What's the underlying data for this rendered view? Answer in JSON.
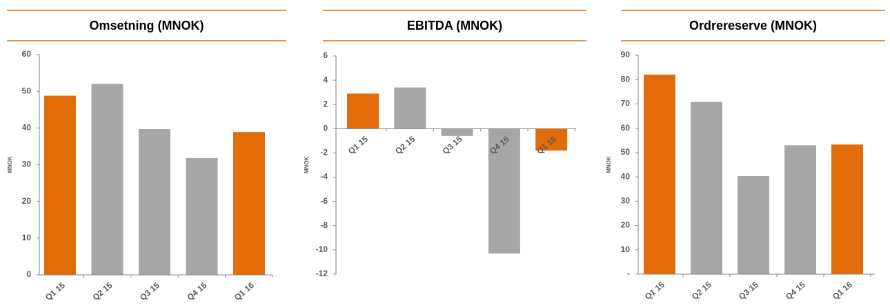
{
  "chart_data": [
    {
      "type": "bar",
      "title": "Omsetning (MNOK)",
      "y_label": "MNOK",
      "categories": [
        "Q1 15",
        "Q2 15",
        "Q3 15",
        "Q4 15",
        "Q1 16"
      ],
      "values": [
        48.8,
        52,
        39.7,
        31.8,
        38.9
      ],
      "colors": [
        "#e36c0a",
        "#a6a6a6",
        "#a6a6a6",
        "#a6a6a6",
        "#e36c0a"
      ],
      "ylim": [
        0,
        60
      ],
      "yticks": [
        0,
        10,
        20,
        30,
        40,
        50,
        60
      ]
    },
    {
      "type": "bar",
      "title": "EBITDA (MNOK)",
      "y_label": "MNOK",
      "categories": [
        "Q1 15",
        "Q2 15",
        "Q3 15",
        "Q4 15",
        "Q1 16"
      ],
      "values": [
        2.9,
        3.4,
        -0.6,
        -10.3,
        -1.8
      ],
      "colors": [
        "#e36c0a",
        "#a6a6a6",
        "#a6a6a6",
        "#a6a6a6",
        "#e36c0a"
      ],
      "ylim": [
        -12,
        6
      ],
      "yticks": [
        -12,
        -10,
        -8,
        -6,
        -4,
        -2,
        0,
        2,
        4,
        6
      ]
    },
    {
      "type": "bar",
      "title": "Ordrereserve (MNOK)",
      "y_label": "MNOK",
      "categories": [
        "Q1 15",
        "Q2 15",
        "Q3 15",
        "Q4 15",
        "Q1 16"
      ],
      "values": [
        82,
        70.8,
        40.3,
        53,
        53.3
      ],
      "colors": [
        "#e36c0a",
        "#a6a6a6",
        "#a6a6a6",
        "#a6a6a6",
        "#e36c0a"
      ],
      "ylim": [
        0,
        90
      ],
      "yticks": [
        {
          "value": 0,
          "label": "-"
        },
        10,
        20,
        30,
        40,
        50,
        60,
        70,
        80,
        90
      ]
    }
  ]
}
